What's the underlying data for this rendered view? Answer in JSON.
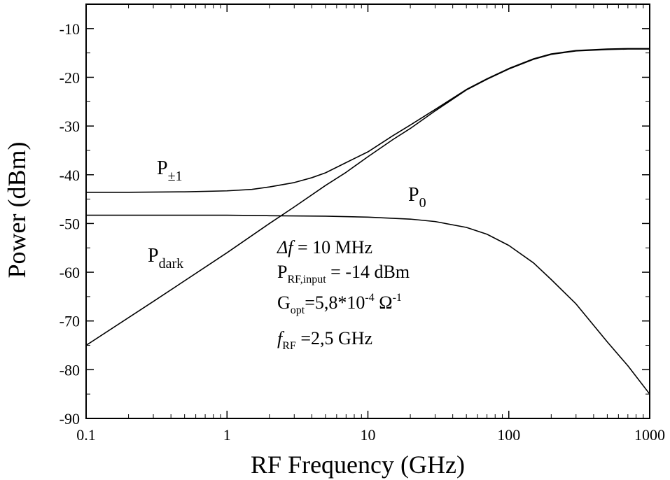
{
  "chart_data": {
    "type": "line",
    "title": "",
    "xlabel": "RF Frequency (GHz)",
    "ylabel": "Power (dBm)",
    "xscale": "log",
    "xlim": [
      0.1,
      1000
    ],
    "ylim": [
      -90,
      -5
    ],
    "xticks": [
      0.1,
      1,
      10,
      100,
      1000
    ],
    "xtick_labels": [
      "0.1",
      "1",
      "10",
      "100",
      "1000"
    ],
    "yticks": [
      -90,
      -80,
      -70,
      -60,
      -50,
      -40,
      -30,
      -20,
      -10
    ],
    "ytick_labels": [
      "-90",
      "-80",
      "-70",
      "-60",
      "-50",
      "-40",
      "-30",
      "-20",
      "-10"
    ],
    "grid": false,
    "series": [
      {
        "name": "P±1",
        "label_main": "P",
        "label_sub": "±1",
        "color": "#000000",
        "x": [
          0.1,
          0.2,
          0.5,
          1,
          1.5,
          2,
          3,
          4,
          5,
          7,
          10,
          15,
          20,
          30,
          50,
          70,
          100,
          150,
          200,
          300,
          500,
          700,
          1000
        ],
        "y": [
          -43.6,
          -43.6,
          -43.5,
          -43.3,
          -43.0,
          -42.5,
          -41.6,
          -40.6,
          -39.6,
          -37.5,
          -35.3,
          -32.0,
          -29.8,
          -26.6,
          -22.5,
          -20.3,
          -18.2,
          -16.2,
          -15.2,
          -14.5,
          -14.2,
          -14.1,
          -14.1
        ]
      },
      {
        "name": "P0",
        "label_main": "P",
        "label_sub": "0",
        "color": "#000000",
        "x": [
          0.1,
          0.5,
          1,
          2,
          5,
          10,
          20,
          30,
          50,
          70,
          100,
          150,
          200,
          300,
          500,
          700,
          1000
        ],
        "y": [
          -48.3,
          -48.3,
          -48.3,
          -48.4,
          -48.5,
          -48.7,
          -49.1,
          -49.6,
          -50.8,
          -52.2,
          -54.5,
          -58.1,
          -61.5,
          -66.5,
          -74.3,
          -79.2,
          -85.0
        ]
      },
      {
        "name": "Pdark",
        "label_main": "P",
        "label_sub": "dark",
        "color": "#000000",
        "x": [
          0.1,
          0.3,
          1,
          2,
          3,
          5,
          7,
          10,
          15,
          20,
          30,
          50,
          70,
          100,
          150,
          200,
          300,
          500,
          700,
          1000
        ],
        "y": [
          -75.0,
          -66.0,
          -56.0,
          -50.0,
          -46.6,
          -42.2,
          -39.5,
          -36.3,
          -32.8,
          -30.5,
          -26.9,
          -22.6,
          -20.4,
          -18.3,
          -16.3,
          -15.3,
          -14.6,
          -14.3,
          -14.2,
          -14.2
        ]
      }
    ],
    "annotations": [
      {
        "main": "Δf",
        "sub": "",
        "rest": "  = 10 MHz"
      },
      {
        "main": "P",
        "sub": "RF,input",
        "rest": " = -14 dBm"
      },
      {
        "main": "G",
        "sub": "opt",
        "rest": "=5,8*10",
        "sup": "-4",
        "rest2": " Ω",
        "sup2": "-1"
      },
      {
        "main": "f",
        "sub": "RF",
        "rest": " =2,5 GHz"
      }
    ]
  }
}
